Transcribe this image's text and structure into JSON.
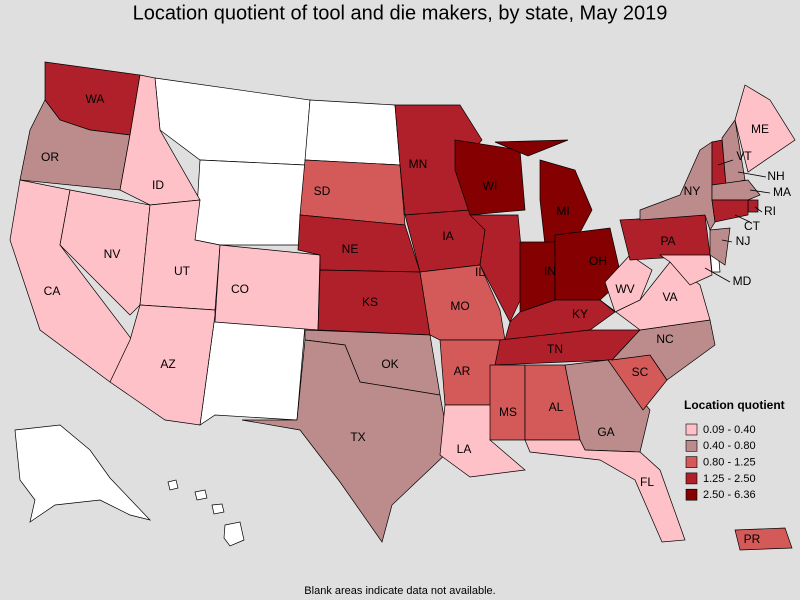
{
  "title": "Location quotient of tool and die makers, by state, May 2019",
  "legend": {
    "title": "Location quotient",
    "items": [
      {
        "label": "0.09 - 0.40",
        "color": "#ffc1c8"
      },
      {
        "label": "0.40 - 0.80",
        "color": "#bc8c8c"
      },
      {
        "label": "0.80 - 1.25",
        "color": "#d45a5a"
      },
      {
        "label": "1.25 - 2.50",
        "color": "#b0202a"
      },
      {
        "label": "2.50 - 6.36",
        "color": "#850000"
      }
    ]
  },
  "states": [
    {
      "abbr": "WA",
      "category": 3
    },
    {
      "abbr": "OR",
      "category": 1
    },
    {
      "abbr": "CA",
      "category": 0
    },
    {
      "abbr": "NV",
      "category": 0
    },
    {
      "abbr": "ID",
      "category": 0
    },
    {
      "abbr": "UT",
      "category": 0
    },
    {
      "abbr": "AZ",
      "category": 0
    },
    {
      "abbr": "CO",
      "category": 0
    },
    {
      "abbr": "SD",
      "category": 2
    },
    {
      "abbr": "NE",
      "category": 3
    },
    {
      "abbr": "KS",
      "category": 3
    },
    {
      "abbr": "OK",
      "category": 1
    },
    {
      "abbr": "TX",
      "category": 1
    },
    {
      "abbr": "MN",
      "category": 3
    },
    {
      "abbr": "IA",
      "category": 3
    },
    {
      "abbr": "MO",
      "category": 2
    },
    {
      "abbr": "AR",
      "category": 2
    },
    {
      "abbr": "LA",
      "category": 0
    },
    {
      "abbr": "WI",
      "category": 4
    },
    {
      "abbr": "IL",
      "category": 3
    },
    {
      "abbr": "MI",
      "category": 4
    },
    {
      "abbr": "IN",
      "category": 4
    },
    {
      "abbr": "OH",
      "category": 4
    },
    {
      "abbr": "KY",
      "category": 3
    },
    {
      "abbr": "TN",
      "category": 3
    },
    {
      "abbr": "MS",
      "category": 2
    },
    {
      "abbr": "AL",
      "category": 2
    },
    {
      "abbr": "GA",
      "category": 1
    },
    {
      "abbr": "FL",
      "category": 0
    },
    {
      "abbr": "SC",
      "category": 2
    },
    {
      "abbr": "NC",
      "category": 1
    },
    {
      "abbr": "VA",
      "category": 0
    },
    {
      "abbr": "WV",
      "category": 0
    },
    {
      "abbr": "PA",
      "category": 3
    },
    {
      "abbr": "NY",
      "category": 1
    },
    {
      "abbr": "VT",
      "category": 3
    },
    {
      "abbr": "NH",
      "category": 1
    },
    {
      "abbr": "ME",
      "category": 0
    },
    {
      "abbr": "MA",
      "category": 1
    },
    {
      "abbr": "RI",
      "category": 3
    },
    {
      "abbr": "CT",
      "category": 3
    },
    {
      "abbr": "NJ",
      "category": 1
    },
    {
      "abbr": "MD",
      "category": 0
    },
    {
      "abbr": "PR",
      "category": 2
    }
  ],
  "footnote": "Blank areas indicate data not available."
}
